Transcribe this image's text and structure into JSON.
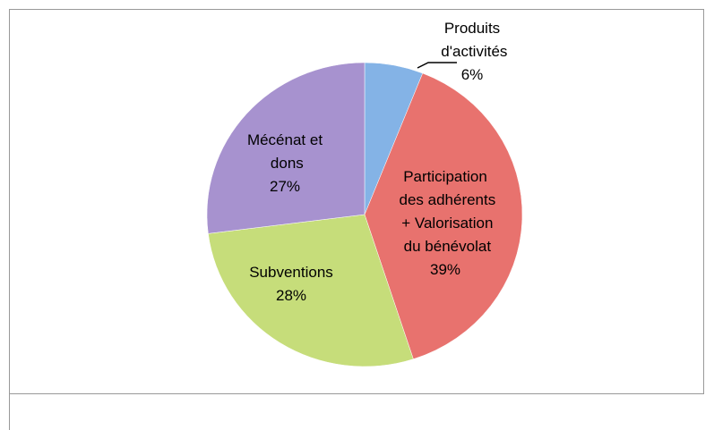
{
  "chart_data": {
    "type": "pie",
    "categories": [
      "Produits\nd'activités",
      "Participation\ndes adhérents\n+ Valorisation\ndu bénévolat",
      "Subventions",
      "Mécénat et\ndons"
    ],
    "values": [
      6,
      39,
      28,
      27
    ],
    "value_labels": [
      "6%",
      "39%",
      "28%",
      "27%"
    ],
    "colors": [
      "#84b3e6",
      "#e8726e",
      "#c6dd7a",
      "#a792cf"
    ]
  }
}
